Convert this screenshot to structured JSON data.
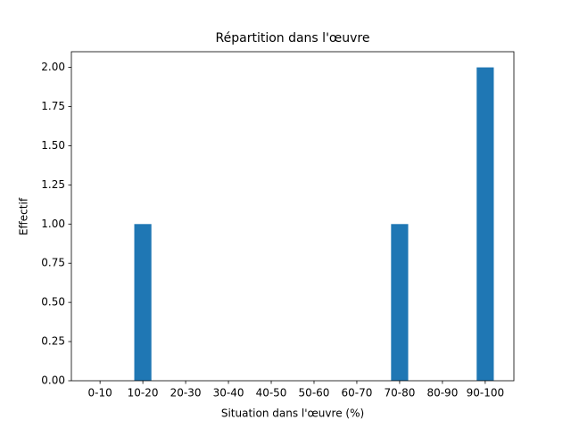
{
  "chart_data": {
    "type": "bar",
    "title": "Répartition dans l'œuvre",
    "x_label": "Situation dans l'œuvre (%)",
    "y_label": "Effectif",
    "categories": [
      "0-10",
      "10-20",
      "20-30",
      "30-40",
      "40-50",
      "50-60",
      "60-70",
      "70-80",
      "80-90",
      "90-100"
    ],
    "values": [
      0,
      1,
      0,
      0,
      0,
      0,
      0,
      1,
      0,
      2
    ],
    "color": "#1f77b4",
    "ylim": [
      0,
      2.1
    ],
    "yticks": [
      {
        "value": 0,
        "label": "0.00"
      },
      {
        "value": 0.25,
        "label": "0.25"
      },
      {
        "value": 0.5,
        "label": "0.50"
      },
      {
        "value": 0.75,
        "label": "0.75"
      },
      {
        "value": 1,
        "label": "1.00"
      },
      {
        "value": 1.25,
        "label": "1.25"
      },
      {
        "value": 1.5,
        "label": "1.50"
      },
      {
        "value": 1.75,
        "label": "1.75"
      },
      {
        "value": 2,
        "label": "2.00"
      }
    ],
    "grid": false
  }
}
